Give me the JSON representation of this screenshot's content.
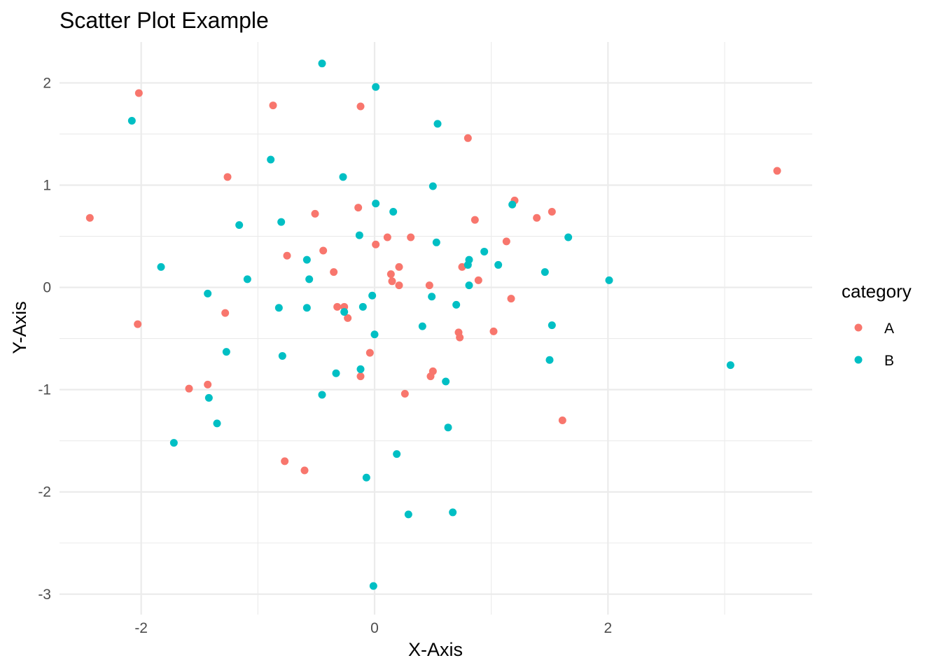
{
  "chart_data": {
    "type": "scatter",
    "title": "Scatter Plot Example",
    "xlabel": "X-Axis",
    "ylabel": "Y-Axis",
    "xlim": [
      -2.7,
      3.75
    ],
    "ylim": [
      -3.2,
      2.4
    ],
    "x_ticks": [
      -2,
      0,
      2
    ],
    "x_tick_labels": [
      "-2",
      "0",
      "2"
    ],
    "y_ticks": [
      -3,
      -2,
      -1,
      0,
      1,
      2
    ],
    "y_tick_labels": [
      "-3",
      "-2",
      "-1",
      "0",
      "1",
      "2"
    ],
    "grid": true,
    "legend": {
      "title": "category",
      "placement": "right"
    },
    "series": [
      {
        "name": "A",
        "color": "#F8766D",
        "points": [
          [
            -2.02,
            1.9
          ],
          [
            -0.87,
            1.78
          ],
          [
            -0.12,
            1.77
          ],
          [
            0.8,
            1.46
          ],
          [
            -1.26,
            1.08
          ],
          [
            3.45,
            1.14
          ],
          [
            -2.44,
            0.68
          ],
          [
            -0.51,
            0.72
          ],
          [
            -0.14,
            0.78
          ],
          [
            0.86,
            0.66
          ],
          [
            1.2,
            0.85
          ],
          [
            1.39,
            0.68
          ],
          [
            1.52,
            0.74
          ],
          [
            0.01,
            0.42
          ],
          [
            0.11,
            0.49
          ],
          [
            0.31,
            0.49
          ],
          [
            1.13,
            0.45
          ],
          [
            -0.44,
            0.36
          ],
          [
            -0.75,
            0.31
          ],
          [
            -0.35,
            0.15
          ],
          [
            0.14,
            0.13
          ],
          [
            0.15,
            0.06
          ],
          [
            0.21,
            0.2
          ],
          [
            0.21,
            0.02
          ],
          [
            0.47,
            0.02
          ],
          [
            0.75,
            0.2
          ],
          [
            0.89,
            0.07
          ],
          [
            1.17,
            -0.11
          ],
          [
            -0.32,
            -0.19
          ],
          [
            -0.26,
            -0.19
          ],
          [
            -0.23,
            -0.3
          ],
          [
            -1.28,
            -0.25
          ],
          [
            -2.03,
            -0.36
          ],
          [
            0.72,
            -0.44
          ],
          [
            0.73,
            -0.49
          ],
          [
            1.02,
            -0.43
          ],
          [
            -0.04,
            -0.64
          ],
          [
            -0.12,
            -0.87
          ],
          [
            0.48,
            -0.87
          ],
          [
            0.5,
            -0.82
          ],
          [
            -1.43,
            -0.95
          ],
          [
            -1.59,
            -0.99
          ],
          [
            0.26,
            -1.04
          ],
          [
            1.61,
            -1.3
          ],
          [
            -0.77,
            -1.7
          ],
          [
            -0.6,
            -1.79
          ]
        ]
      },
      {
        "name": "B",
        "color": "#00BFC4",
        "points": [
          [
            -0.45,
            2.19
          ],
          [
            0.01,
            1.96
          ],
          [
            0.54,
            1.6
          ],
          [
            -2.08,
            1.63
          ],
          [
            -0.89,
            1.25
          ],
          [
            -0.27,
            1.08
          ],
          [
            0.5,
            0.99
          ],
          [
            0.01,
            0.82
          ],
          [
            0.16,
            0.74
          ],
          [
            1.18,
            0.81
          ],
          [
            -1.16,
            0.61
          ],
          [
            -0.8,
            0.64
          ],
          [
            -0.13,
            0.51
          ],
          [
            0.53,
            0.44
          ],
          [
            1.66,
            0.49
          ],
          [
            0.94,
            0.35
          ],
          [
            1.06,
            0.22
          ],
          [
            0.8,
            0.22
          ],
          [
            0.81,
            0.27
          ],
          [
            -0.58,
            0.27
          ],
          [
            -1.83,
            0.2
          ],
          [
            -1.09,
            0.08
          ],
          [
            -0.56,
            0.08
          ],
          [
            1.46,
            0.15
          ],
          [
            2.01,
            0.07
          ],
          [
            0.81,
            0.02
          ],
          [
            -1.43,
            -0.06
          ],
          [
            -0.02,
            -0.08
          ],
          [
            0.49,
            -0.09
          ],
          [
            0.7,
            -0.17
          ],
          [
            -0.82,
            -0.2
          ],
          [
            -0.58,
            -0.2
          ],
          [
            -0.1,
            -0.19
          ],
          [
            -0.26,
            -0.24
          ],
          [
            0.41,
            -0.38
          ],
          [
            1.52,
            -0.37
          ],
          [
            0.0,
            -0.46
          ],
          [
            -1.27,
            -0.63
          ],
          [
            -0.79,
            -0.67
          ],
          [
            1.5,
            -0.71
          ],
          [
            3.05,
            -0.76
          ],
          [
            -0.12,
            -0.8
          ],
          [
            -0.33,
            -0.84
          ],
          [
            0.61,
            -0.92
          ],
          [
            -0.45,
            -1.05
          ],
          [
            -1.42,
            -1.08
          ],
          [
            -1.35,
            -1.33
          ],
          [
            0.63,
            -1.37
          ],
          [
            -1.72,
            -1.52
          ],
          [
            0.19,
            -1.63
          ],
          [
            -0.07,
            -1.86
          ],
          [
            0.29,
            -2.22
          ],
          [
            0.67,
            -2.2
          ],
          [
            -0.01,
            -2.92
          ]
        ]
      }
    ]
  }
}
